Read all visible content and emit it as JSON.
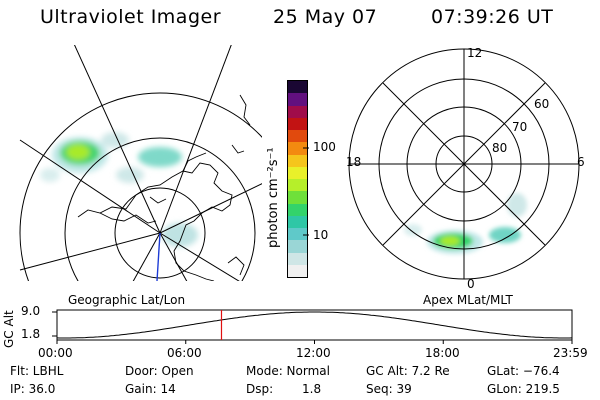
{
  "header": {
    "title": "Ultraviolet Imager",
    "date": "25 May 07",
    "time": "07:39:26 UT"
  },
  "colorbar": {
    "unit_label": "photon cm⁻²s⁻¹",
    "ticks": [
      "100",
      "10"
    ],
    "colors": [
      "#f0f0f0",
      "#cfe6e6",
      "#9ad6d6",
      "#5fc9c9",
      "#2fc7a6",
      "#33d36b",
      "#6fe03a",
      "#b6ef2a",
      "#e9f02a",
      "#f5c51c",
      "#f38a10",
      "#e14a0d",
      "#c21313",
      "#a00c4a",
      "#62107f",
      "#1a0733"
    ]
  },
  "left_map": {
    "caption": "Geographic Lat/Lon"
  },
  "right_map": {
    "caption": "Apex MLat/MLT",
    "mlt_labels": {
      "top": "12",
      "bottom": "0",
      "left": "18",
      "right": "6"
    },
    "lat_labels": [
      "60",
      "70",
      "80"
    ]
  },
  "timeline": {
    "ylabel": "GC Alt",
    "ymax": "9.0",
    "ymin": "1.8",
    "ticks": [
      "00:00",
      "06:00",
      "12:00",
      "18:00",
      "23:59"
    ],
    "current_time_fraction": 0.3194
  },
  "info": {
    "flt": "Flt: LBHL",
    "ip": "IP: 36.0",
    "door": "Door: Open",
    "gain": "Gain: 14",
    "mode": "Mode: Normal",
    "dsp_label": "Dsp:",
    "dsp_value": "1.8",
    "gc_alt": "GC Alt: 7.2 Re",
    "seq": "Seq: 39",
    "glat": "GLat: −76.4",
    "glon": "GLon: 219.5"
  }
}
